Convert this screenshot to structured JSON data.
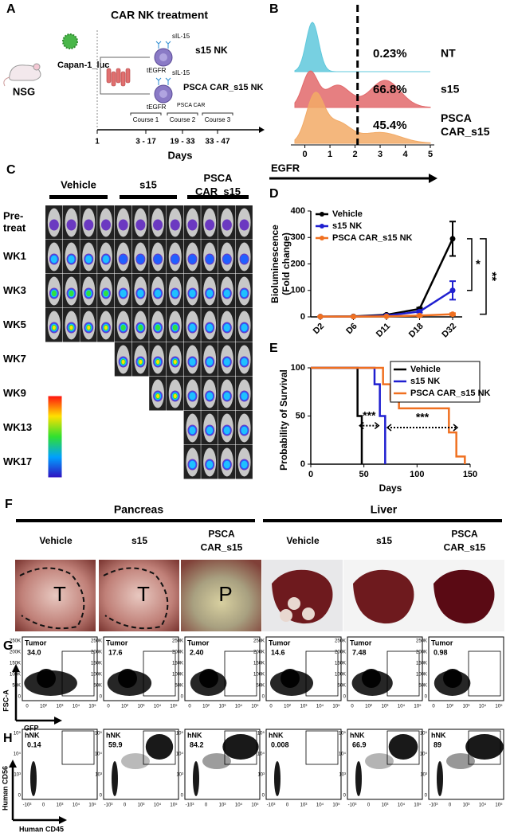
{
  "panel_a": {
    "label": "A",
    "title": "CAR NK treatment",
    "mouse": "NSG",
    "cells": "Capan-1_luc",
    "arms": [
      {
        "name": "s15 NK",
        "cytokine": "sIL-15",
        "marker": "tEGFR"
      },
      {
        "name": "PSCA CAR_s15 NK",
        "cytokine": "sIL-15",
        "marker": "tEGFR",
        "car": "PSCA CAR"
      }
    ],
    "courses": [
      "Course 1",
      "Course 2",
      "Course 3"
    ],
    "ticks": [
      "1",
      "3 - 17",
      "19 - 33",
      "33 - 47"
    ],
    "xlabel": "Days"
  },
  "panel_b": {
    "label": "B",
    "xlabel": "EGFR",
    "xlim": [
      -0.4,
      5
    ],
    "xticks": [
      0,
      1,
      2,
      3,
      4,
      5
    ],
    "gate": 2.1,
    "rows": [
      {
        "percent": "0.23%",
        "name": "NT",
        "color": "#5fc8dc"
      },
      {
        "percent": "66.8%",
        "name": "s15",
        "color": "#e2696b"
      },
      {
        "percent": "45.4%",
        "name": [
          "PSCA",
          "CAR_s15"
        ],
        "color": "#f2aa66"
      }
    ]
  },
  "panel_c": {
    "label": "C",
    "groups": [
      "Vehicle",
      "s15",
      [
        "PSCA",
        "CAR_s15"
      ]
    ],
    "timepoints": [
      [
        "Pre-",
        "treat"
      ],
      "WK1",
      "WK3",
      "WK5",
      "WK7",
      "WK9",
      "WK13",
      "WK17"
    ]
  },
  "chart_data": [
    {
      "panel": "D",
      "type": "line",
      "ylabel": [
        "Bioluminescence",
        "(Fold change)"
      ],
      "categories": [
        "D2",
        "D6",
        "D11",
        "D18",
        "D32"
      ],
      "ylim": [
        0,
        400
      ],
      "yticks": [
        0,
        100,
        200,
        300,
        400
      ],
      "legend": "upper left",
      "series": [
        {
          "name": "Vehicle",
          "color": "#000000",
          "values": [
            1,
            2,
            8,
            30,
            295
          ],
          "errors": [
            0,
            0,
            2,
            5,
            65
          ]
        },
        {
          "name": "s15 NK",
          "color": "#1f1fd0",
          "values": [
            1,
            1,
            5,
            20,
            100
          ],
          "errors": [
            0,
            0,
            1,
            4,
            35
          ]
        },
        {
          "name": "PSCA CAR_s15 NK",
          "color": "#f07020",
          "values": [
            1,
            1,
            2,
            5,
            10
          ],
          "errors": [
            0,
            0,
            1,
            2,
            4
          ]
        }
      ],
      "annotations": [
        "*",
        "**"
      ]
    },
    {
      "panel": "E",
      "type": "step",
      "xlabel": "Days",
      "ylabel": "Probability of Survival",
      "xlim": [
        0,
        150
      ],
      "xticks": [
        0,
        50,
        100,
        150
      ],
      "ylim": [
        0,
        100
      ],
      "yticks": [
        0,
        50,
        100
      ],
      "legend": "upper right",
      "series": [
        {
          "name": "Vehicle",
          "color": "#000000",
          "x": [
            0,
            44,
            44,
            48,
            48
          ],
          "values": [
            100,
            100,
            50,
            50,
            0
          ]
        },
        {
          "name": "s15 NK",
          "color": "#1f1fd0",
          "x": [
            0,
            60,
            60,
            65,
            65,
            70,
            70
          ],
          "values": [
            100,
            100,
            83,
            83,
            50,
            50,
            0
          ]
        },
        {
          "name": "PSCA CAR_s15 NK",
          "color": "#f07020",
          "x": [
            0,
            68,
            68,
            75,
            75,
            83,
            83,
            130,
            130,
            137,
            137,
            145,
            145
          ],
          "values": [
            100,
            100,
            83,
            83,
            67,
            67,
            58,
            58,
            33,
            33,
            8,
            8,
            0
          ]
        }
      ],
      "annotations": [
        "***",
        "***"
      ]
    }
  ],
  "panel_f": {
    "label": "F",
    "tissues": [
      {
        "name": "Pancreas",
        "groups": [
          "Vehicle",
          "s15",
          [
            "PSCA",
            "CAR_s15"
          ]
        ],
        "marks": [
          "T",
          "T",
          "P"
        ]
      },
      {
        "name": "Liver",
        "groups": [
          "Vehicle",
          "s15",
          [
            "PSCA",
            "CAR_s15"
          ]
        ]
      }
    ]
  },
  "panel_g": {
    "label": "G",
    "gate": "Tumor",
    "values": [
      "34.0",
      "17.6",
      "2.40",
      "14.6",
      "7.48",
      "0.98"
    ],
    "yticks": [
      "250K",
      "200K",
      "150K",
      "100K",
      "50K",
      "0"
    ],
    "xticks": [
      "0",
      "10²",
      "10³",
      "10⁴",
      "10⁵"
    ],
    "ylabel": "FSC-A",
    "xlabel": "GFP"
  },
  "panel_h": {
    "label": "H",
    "gate": "hNK",
    "values": [
      "0.14",
      "59.9",
      "84.2",
      "0.008",
      "66.9",
      "89"
    ],
    "yticks": [
      "10⁵",
      "10⁴",
      "10³",
      "0"
    ],
    "xticks": [
      "-10³",
      "0",
      "10³",
      "10⁴",
      "10⁵"
    ],
    "ylabel": "Human CD56",
    "xlabel": "Human CD45"
  }
}
